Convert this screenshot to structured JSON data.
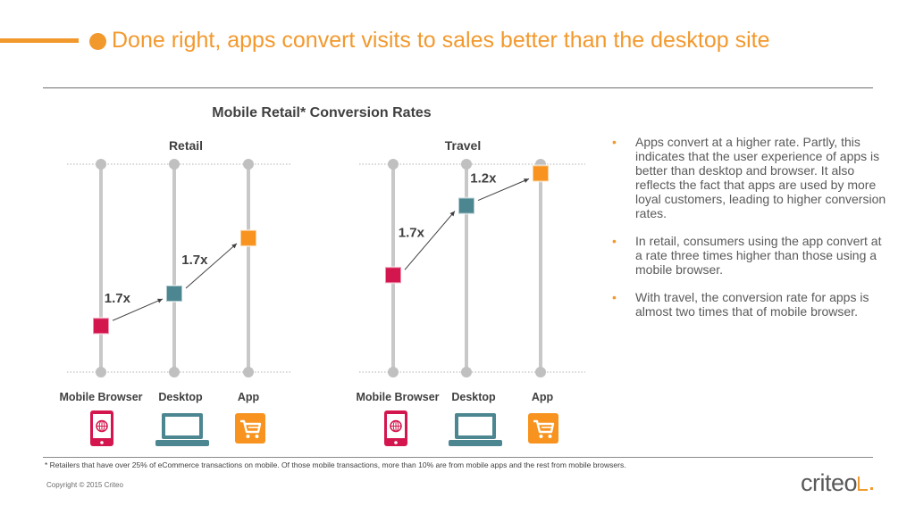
{
  "slide": {
    "title": "Done right, apps convert visits to sales better than the desktop site",
    "chart_title": "Mobile Retail* Conversion Rates",
    "bullets": [
      "Apps convert at a higher rate. Partly, this indicates that the user experience of apps is better than desktop and browser. It also reflects the fact that apps are used by more loyal customers, leading to higher conversion rates.",
      "In retail, consumers using the app convert at a rate three times higher than those using a mobile browser.",
      "With travel, the conversion rate for apps is almost two times that of mobile browser."
    ],
    "bullet_symbol": "•",
    "footnote": "* Retailers that have over 25% of eCommerce transactions on mobile. Of those mobile transactions, more than 10% are from mobile apps and the rest from mobile browsers.",
    "copyright": "Copyright © 2015 Criteo",
    "logo_text": "criteo",
    "colors": {
      "accent": "#f2992e",
      "mobile": "#d4164e",
      "desktop": "#4c8690",
      "app": "#f7931e",
      "track": "#c8c8c8"
    },
    "icons": {
      "mobile": "mobile-phone-icon",
      "desktop": "laptop-icon",
      "app": "shopping-cart-icon"
    }
  },
  "chart_data": [
    {
      "type": "dot-plot",
      "title": "Retail",
      "categories": [
        "Mobile Browser",
        "Desktop",
        "App"
      ],
      "values": [
        1,
        1.7,
        2.9
      ],
      "ratio_labels": [
        "1.7x",
        "1.7x"
      ],
      "ylim": [
        0,
        4.5
      ],
      "grid": true
    },
    {
      "type": "dot-plot",
      "title": "Travel",
      "categories": [
        "Mobile Browser",
        "Desktop",
        "App"
      ],
      "values": [
        2.1,
        3.6,
        4.3
      ],
      "ratio_labels": [
        "1.7x",
        "1.2x"
      ],
      "ylim": [
        0,
        4.5
      ],
      "grid": true
    }
  ]
}
